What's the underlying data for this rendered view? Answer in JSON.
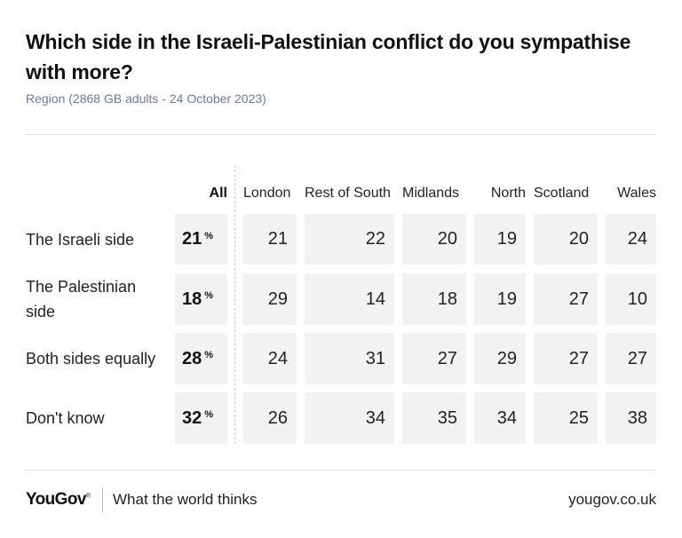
{
  "title": "Which side in the Israeli-Palestinian conflict do you sympathise with more?",
  "subtitle": "Region (2868 GB adults - 24 October 2023)",
  "chart_data": {
    "type": "table",
    "columns": [
      "All",
      "London",
      "Rest of South",
      "Midlands",
      "North",
      "Scotland",
      "Wales"
    ],
    "rows": [
      {
        "label": "The Israeli side",
        "values": [
          21,
          21,
          22,
          20,
          19,
          20,
          24
        ]
      },
      {
        "label": "The Palestinian side",
        "values": [
          18,
          29,
          14,
          18,
          19,
          27,
          10
        ]
      },
      {
        "label": "Both sides equally",
        "values": [
          28,
          24,
          31,
          27,
          29,
          27,
          27
        ]
      },
      {
        "label": "Don't know",
        "values": [
          32,
          26,
          34,
          35,
          34,
          25,
          38
        ]
      }
    ],
    "unit_symbol": "%"
  },
  "footer": {
    "logo": "YouGov",
    "logo_mark": "®",
    "tagline": "What the world thinks",
    "site": "yougov.co.uk"
  },
  "colors": {
    "cell_bg": "#f2f2f2",
    "subtitle": "#6b7a99",
    "text": "#111111"
  }
}
